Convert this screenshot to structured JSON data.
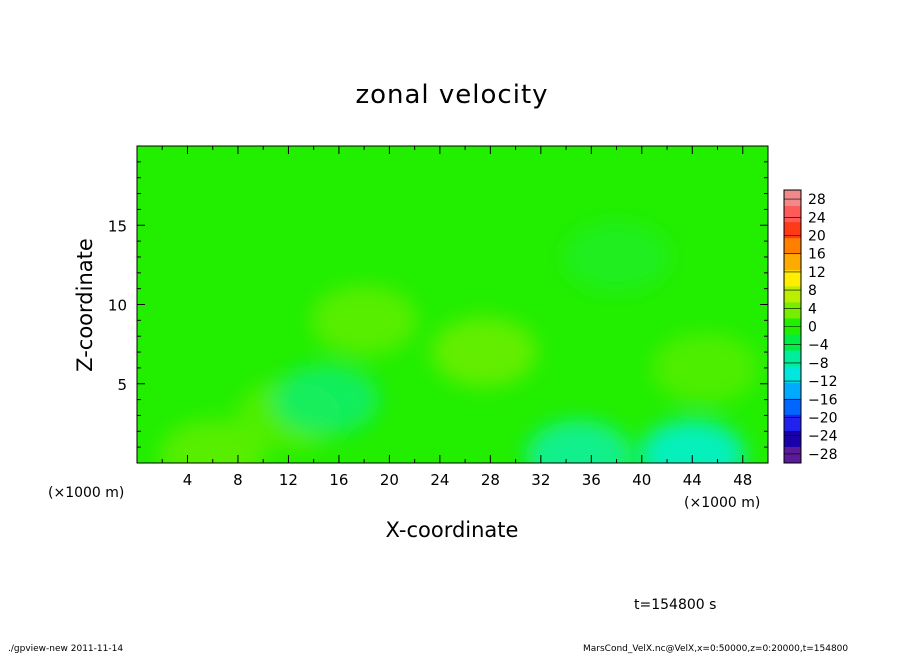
{
  "chart_data": {
    "type": "heatmap",
    "title": "zonal velocity",
    "xlabel": "X-coordinate",
    "ylabel": "Z-coordinate",
    "x_unit": "(×1000 m)",
    "x_unit_right": "(×1000 m)",
    "xlim": [
      0,
      50
    ],
    "ylim": [
      0,
      20
    ],
    "x_ticks": [
      4,
      8,
      12,
      16,
      20,
      24,
      28,
      32,
      36,
      40,
      44,
      48
    ],
    "y_ticks": [
      5,
      10,
      15
    ],
    "grid": false,
    "legend": "colorbar right",
    "colorbar": {
      "levels": [
        28,
        24,
        20,
        16,
        12,
        8,
        4,
        0,
        -4,
        -8,
        -12,
        -16,
        -20,
        -24,
        -28
      ],
      "labels": [
        "28",
        "24",
        "20",
        "16",
        "12",
        "8",
        "4",
        "0",
        "−4",
        "−8",
        "−12",
        "−16",
        "−20",
        "−24",
        "−28"
      ],
      "range": [
        -30,
        30
      ]
    },
    "field_description_samples": [
      {
        "x": 6,
        "z": 0.5,
        "u": 5
      },
      {
        "x": 12,
        "z": 3,
        "u": 4
      },
      {
        "x": 15,
        "z": 4,
        "u": -6
      },
      {
        "x": 18,
        "z": 9,
        "u": 5
      },
      {
        "x": 27.5,
        "z": 7,
        "u": 6
      },
      {
        "x": 35,
        "z": 0.5,
        "u": -9
      },
      {
        "x": 44,
        "z": 0.5,
        "u": -12
      },
      {
        "x": 45,
        "z": 6,
        "u": 4
      },
      {
        "x": 38,
        "z": 13,
        "u": -2
      }
    ]
  },
  "annotations": {
    "time": "t=154800 s",
    "footer_left": "./gpview-new   2011-11-14",
    "footer_right": "MarsCond_VelX.nc@VelX,x=0:50000,z=0:20000,t=154800"
  },
  "colors": {
    "background_field": "#22ee00",
    "positive_patch": "#77ee00",
    "negative_patch": "#00ee77"
  }
}
